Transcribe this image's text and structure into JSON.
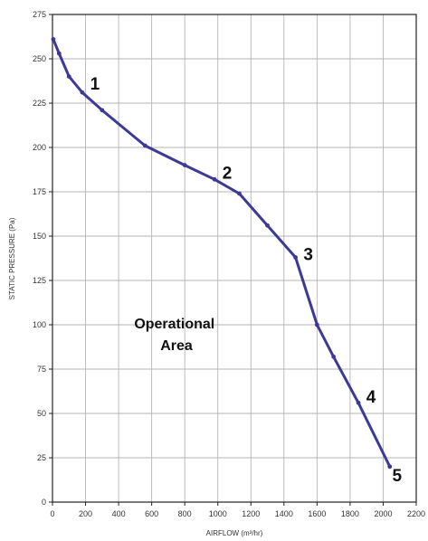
{
  "chart_data": {
    "type": "line",
    "xlabel": "AIRFLOW (m³/hr)",
    "ylabel": "STATIC PRESSURE (Pa)",
    "xlim": [
      0,
      2200
    ],
    "ylim": [
      0,
      275
    ],
    "xticks": [
      0,
      200,
      400,
      600,
      800,
      1000,
      1200,
      1400,
      1600,
      1800,
      2000,
      2200
    ],
    "yticks": [
      0,
      25,
      50,
      75,
      100,
      125,
      150,
      175,
      200,
      225,
      250,
      275
    ],
    "grid": true,
    "series": [
      {
        "color": "#3b3a96",
        "x": [
          5,
          40,
          100,
          180,
          300,
          560,
          800,
          980,
          1130,
          1300,
          1470,
          1600,
          1700,
          1850,
          2040
        ],
        "y": [
          261,
          253,
          240,
          231,
          221,
          201,
          190,
          182,
          174,
          156,
          138,
          100,
          82,
          56,
          20
        ]
      }
    ],
    "point_labels": [
      {
        "text": "1",
        "x": 180,
        "y": 231
      },
      {
        "text": "2",
        "x": 980,
        "y": 182
      },
      {
        "text": "3",
        "x": 1470,
        "y": 138
      },
      {
        "text": "4",
        "x": 1850,
        "y": 56
      },
      {
        "text": "5",
        "x": 2040,
        "y": 20
      }
    ],
    "annotation": [
      "Operational",
      "Area"
    ]
  }
}
